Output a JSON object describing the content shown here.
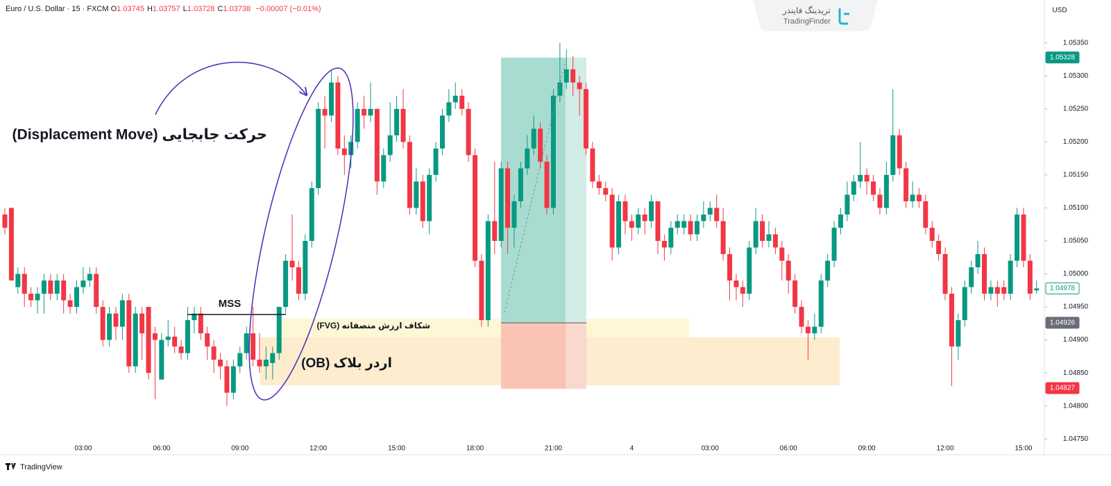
{
  "header": {
    "symbol": "Euro / U.S. Dollar · 15 · FXCM",
    "ohlc": [
      {
        "letter": "O",
        "value": "1.03745"
      },
      {
        "letter": "H",
        "value": "1.03757"
      },
      {
        "letter": "L",
        "value": "1.03728"
      },
      {
        "letter": "C",
        "value": "1.03738"
      }
    ],
    "change": "−0.00007 (−0.01%)"
  },
  "watermark": {
    "brand_fa": "تریدینگ فایندر",
    "brand_en": "TradingFinder"
  },
  "footer": "TradingView",
  "annotations": {
    "displacement": "حرکت جابجایی (Displacement Move)",
    "mss": "MSS",
    "fvg": "شکاف ارزش منصفانه (FVG)",
    "ob": "اردر بلاک (OB)"
  },
  "chart_data": {
    "type": "candlestick",
    "currency": "USD",
    "up_color": "#089981",
    "down_color": "#f23645",
    "categories": [
      null,
      null,
      null,
      null,
      null,
      null,
      null,
      null,
      null,
      null,
      null,
      null,
      "03:00",
      null,
      null,
      null,
      null,
      null,
      null,
      null,
      null,
      null,
      null,
      null,
      "06:00",
      null,
      null,
      null,
      null,
      null,
      null,
      null,
      null,
      null,
      null,
      null,
      "09:00",
      null,
      null,
      null,
      null,
      null,
      null,
      null,
      null,
      null,
      null,
      null,
      "12:00",
      null,
      null,
      null,
      null,
      null,
      null,
      null,
      null,
      null,
      null,
      null,
      "15:00",
      null,
      null,
      null,
      null,
      null,
      null,
      null,
      null,
      null,
      null,
      null,
      "18:00",
      null,
      null,
      null,
      null,
      null,
      null,
      null,
      null,
      null,
      null,
      null,
      "21:00",
      null,
      null,
      null,
      null,
      null,
      null,
      null,
      null,
      null,
      null,
      null,
      "4",
      null,
      null,
      null,
      null,
      null,
      null,
      null,
      null,
      null,
      null,
      null,
      "03:00",
      null,
      null,
      null,
      null,
      null,
      null,
      null,
      null,
      null,
      null,
      null,
      "06:00",
      null,
      null,
      null,
      null,
      null,
      null,
      null,
      null,
      null,
      null,
      null,
      "09:00",
      null,
      null,
      null,
      null,
      null,
      null,
      null,
      null,
      null,
      null,
      null,
      "12:00",
      null,
      null,
      null,
      null,
      null,
      null,
      null,
      null,
      null,
      null,
      null,
      "15:00",
      null,
      null
    ],
    "open": [
      1.0509,
      1.051,
      1.0498,
      1.05,
      1.0497,
      1.0496,
      1.0497,
      1.0499,
      1.0497,
      1.0499,
      1.0496,
      1.0495,
      1.0498,
      1.0499,
      1.05,
      1.0495,
      1.049,
      1.0494,
      1.0492,
      1.0496,
      1.0486,
      1.0494,
      1.0495,
      1.0491,
      1.0484,
      1.049,
      1.04905,
      1.0489,
      1.0488,
      1.0493,
      1.0494,
      1.0491,
      1.0489,
      1.0487,
      1.0486,
      1.0482,
      1.0486,
      1.0488,
      1.0491,
      1.0487,
      1.0486,
      1.04865,
      1.0488,
      1.0495,
      1.0502,
      1.0501,
      1.0497,
      1.0505,
      1.0513,
      1.0525,
      1.0524,
      1.0529,
      1.0519,
      1.0518,
      1.052,
      1.0525,
      1.0524,
      1.0525,
      1.0514,
      1.0518,
      1.0521,
      1.0525,
      1.052,
      1.051,
      1.0514,
      1.0508,
      1.0515,
      1.0519,
      1.0524,
      1.0526,
      1.0527,
      1.0525,
      1.0518,
      1.0502,
      1.0493,
      1.0508,
      1.0505,
      1.0516,
      1.0507,
      1.0511,
      1.0516,
      1.0519,
      1.0522,
      1.0517,
      1.051,
      1.0527,
      1.0529,
      1.0531,
      1.0529,
      1.0528,
      1.0519,
      1.0514,
      1.0513,
      1.0512,
      1.0504,
      1.0511,
      1.0508,
      1.0507,
      1.0509,
      1.0508,
      1.0511,
      1.0505,
      1.0504,
      1.0507,
      1.0507,
      1.0508,
      1.0506,
      1.0508,
      1.0509,
      1.051,
      1.0508,
      1.0503,
      1.0499,
      1.0498,
      1.0497,
      1.0504,
      1.0508,
      1.0505,
      1.0506,
      1.0504,
      1.0502,
      1.0499,
      1.0495,
      1.0492,
      1.0491,
      1.0492,
      1.0499,
      1.0502,
      1.0507,
      1.0509,
      1.0512,
      1.0514,
      1.0515,
      1.0514,
      1.0512,
      1.051,
      1.0515,
      1.0521,
      1.0516,
      1.0511,
      1.0512,
      1.0511,
      1.0507,
      1.0505,
      1.0503,
      1.0497,
      1.0489,
      1.0493,
      1.0498,
      1.0501,
      1.0503,
      1.0497,
      1.0498,
      1.0498,
      1.0497,
      1.0502,
      1.0509,
      1.0502,
      1.04975
    ],
    "high": [
      1.051,
      1.051,
      1.0501,
      1.0501,
      1.0498,
      1.0498,
      1.05,
      1.05,
      1.05,
      1.05,
      1.0497,
      1.0499,
      1.0501,
      1.0501,
      1.0501,
      1.0496,
      1.0495,
      1.0495,
      1.0497,
      1.0497,
      1.0495,
      1.0495,
      1.0495,
      1.0492,
      1.0491,
      1.0493,
      1.0492,
      1.049,
      1.0495,
      1.0495,
      1.0495,
      1.0492,
      1.049,
      1.0488,
      1.0487,
      1.0487,
      1.0489,
      1.0492,
      1.0495,
      1.0491,
      1.0489,
      1.0489,
      1.0495,
      1.0503,
      1.0509,
      1.0502,
      1.0506,
      1.0514,
      1.0526,
      1.0527,
      1.0531,
      1.053,
      1.0521,
      1.0521,
      1.0526,
      1.0527,
      1.0529,
      1.0525,
      1.0519,
      1.0526,
      1.0527,
      1.0528,
      1.0521,
      1.0516,
      1.0515,
      1.0516,
      1.052,
      1.0525,
      1.0528,
      1.0529,
      1.0528,
      1.0526,
      1.0519,
      1.0503,
      1.0509,
      1.0517,
      1.0517,
      1.0517,
      1.0512,
      1.0517,
      1.0521,
      1.0524,
      1.0523,
      1.0518,
      1.0528,
      1.0535,
      1.0534,
      1.0533,
      1.053,
      1.0529,
      1.052,
      1.0515,
      1.0514,
      1.0513,
      1.0512,
      1.0512,
      1.0509,
      1.051,
      1.051,
      1.0512,
      1.0511,
      1.0506,
      1.0508,
      1.0509,
      1.0509,
      1.0509,
      1.0509,
      1.0511,
      1.0511,
      1.0512,
      1.051,
      1.0504,
      1.05,
      1.0499,
      1.0505,
      1.051,
      1.0509,
      1.0508,
      1.0507,
      1.0505,
      1.0503,
      1.05,
      1.0496,
      1.0493,
      1.0494,
      1.05,
      1.0503,
      1.0508,
      1.051,
      1.0514,
      1.0515,
      1.052,
      1.0516,
      1.0515,
      1.0513,
      1.0517,
      1.0528,
      1.0522,
      1.0517,
      1.0514,
      1.0513,
      1.0512,
      1.0508,
      1.0506,
      1.0504,
      1.0498,
      1.0494,
      1.0499,
      1.0502,
      1.0505,
      1.0504,
      1.0499,
      1.0499,
      1.0499,
      1.0503,
      1.051,
      1.051,
      1.0503,
      1.0499
    ],
    "low": [
      1.0506,
      1.0499,
      1.0497,
      1.0495,
      1.0495,
      1.0494,
      1.0494,
      1.0496,
      1.0496,
      1.0494,
      1.0494,
      1.0494,
      1.0497,
      1.0498,
      1.0494,
      1.0489,
      1.0489,
      1.049,
      1.049,
      1.0485,
      1.0485,
      1.0487,
      1.0484,
      1.0481,
      1.0484,
      1.0489,
      1.0488,
      1.0487,
      1.0487,
      1.0491,
      1.049,
      1.0487,
      1.0485,
      1.0484,
      1.048,
      1.0481,
      1.0485,
      1.0487,
      1.0486,
      1.0485,
      1.0484,
      1.0484,
      1.0487,
      1.0494,
      1.0499,
      1.0496,
      1.0496,
      1.0504,
      1.0512,
      1.0519,
      1.0523,
      1.0518,
      1.0515,
      1.0516,
      1.0519,
      1.0522,
      1.0523,
      1.0512,
      1.0513,
      1.0517,
      1.052,
      1.0519,
      1.0509,
      1.0509,
      1.0507,
      1.0506,
      1.0514,
      1.0518,
      1.0523,
      1.0525,
      1.0524,
      1.0517,
      1.0501,
      1.0492,
      1.0492,
      1.0503,
      1.0504,
      1.0503,
      1.0504,
      1.051,
      1.0515,
      1.0518,
      1.0516,
      1.0509,
      1.0509,
      1.0526,
      1.0528,
      1.0527,
      1.0524,
      1.0518,
      1.0513,
      1.0512,
      1.0511,
      1.0502,
      1.0503,
      1.0506,
      1.0505,
      1.0506,
      1.0506,
      1.0507,
      1.0503,
      1.0502,
      1.0503,
      1.0506,
      1.0506,
      1.0505,
      1.0505,
      1.0507,
      1.0508,
      1.0507,
      1.0502,
      1.0496,
      1.0496,
      1.0495,
      1.0496,
      1.0503,
      1.0504,
      1.0504,
      1.0503,
      1.0499,
      1.0497,
      1.0494,
      1.0491,
      1.0487,
      1.049,
      1.0491,
      1.0498,
      1.0501,
      1.0506,
      1.0508,
      1.0511,
      1.0513,
      1.0512,
      1.0511,
      1.0509,
      1.0509,
      1.0514,
      1.0515,
      1.051,
      1.051,
      1.051,
      1.0506,
      1.0504,
      1.0502,
      1.0496,
      1.0483,
      1.0487,
      1.0492,
      1.0497,
      1.05,
      1.0496,
      1.0496,
      1.0495,
      1.0496,
      1.0496,
      1.0501,
      1.0501,
      1.0496,
      1.0497
    ],
    "close": [
      1.0507,
      1.0499,
      1.05,
      1.0497,
      1.0496,
      1.0497,
      1.0499,
      1.0497,
      1.0499,
      1.0496,
      1.0495,
      1.0498,
      1.0499,
      1.05,
      1.0495,
      1.049,
      1.0494,
      1.0492,
      1.0496,
      1.0486,
      1.0494,
      1.0491,
      1.0485,
      1.049,
      1.049,
      1.04905,
      1.0489,
      1.0488,
      1.0493,
      1.0494,
      1.0491,
      1.0489,
      1.0487,
      1.0486,
      1.0482,
      1.0486,
      1.0488,
      1.0491,
      1.0487,
      1.0486,
      1.0487,
      1.0488,
      1.0495,
      1.0502,
      1.0501,
      1.0497,
      1.0505,
      1.0513,
      1.0525,
      1.0524,
      1.0529,
      1.0519,
      1.0518,
      1.052,
      1.0525,
      1.0524,
      1.0525,
      1.0514,
      1.0518,
      1.0521,
      1.0525,
      1.052,
      1.051,
      1.0514,
      1.0508,
      1.0515,
      1.0519,
      1.0524,
      1.0526,
      1.0527,
      1.0525,
      1.0518,
      1.0502,
      1.0493,
      1.0508,
      1.0505,
      1.0516,
      1.0507,
      1.0511,
      1.0516,
      1.0519,
      1.0522,
      1.0517,
      1.051,
      1.0527,
      1.0529,
      1.0531,
      1.0529,
      1.0528,
      1.0519,
      1.0514,
      1.0513,
      1.0512,
      1.0504,
      1.0511,
      1.0508,
      1.0507,
      1.0509,
      1.0508,
      1.0511,
      1.0505,
      1.0504,
      1.0507,
      1.0508,
      1.0508,
      1.0506,
      1.0508,
      1.0509,
      1.051,
      1.0508,
      1.0503,
      1.0499,
      1.0498,
      1.0497,
      1.0504,
      1.0508,
      1.0505,
      1.0506,
      1.0504,
      1.0502,
      1.0499,
      1.0495,
      1.0492,
      1.0491,
      1.0492,
      1.0499,
      1.0502,
      1.0507,
      1.0509,
      1.0512,
      1.0514,
      1.0515,
      1.0514,
      1.0512,
      1.051,
      1.0515,
      1.0521,
      1.0516,
      1.0511,
      1.0512,
      1.0511,
      1.0507,
      1.0505,
      1.0503,
      1.0497,
      1.0489,
      1.0493,
      1.0498,
      1.0501,
      1.0503,
      1.0497,
      1.0498,
      1.0497,
      1.0497,
      1.0502,
      1.0509,
      1.0502,
      1.0497,
      1.04978
    ],
    "ylim": [
      1.04726,
      1.05415
    ],
    "yticks": [
      {
        "value": 1.0535,
        "label": "1.05350"
      },
      {
        "value": 1.053,
        "label": "1.05300"
      },
      {
        "value": 1.0525,
        "label": "1.05250"
      },
      {
        "value": 1.052,
        "label": "1.05200"
      },
      {
        "value": 1.0515,
        "label": "1.05150"
      },
      {
        "value": 1.051,
        "label": "1.05100"
      },
      {
        "value": 1.0505,
        "label": "1.05050"
      },
      {
        "value": 1.05,
        "label": "1.05000"
      },
      {
        "value": 1.0495,
        "label": "1.04950"
      },
      {
        "value": 1.049,
        "label": "1.04900"
      },
      {
        "value": 1.0485,
        "label": "1.04850"
      },
      {
        "value": 1.048,
        "label": "1.04800"
      },
      {
        "value": 1.0475,
        "label": "1.04750"
      }
    ],
    "price_markers": [
      {
        "value": 1.05328,
        "color": "#089981",
        "style": "filled"
      },
      {
        "value": 1.04978,
        "color": "#089981",
        "style": "outline"
      },
      {
        "value": 1.04926,
        "color": "#6a6d78",
        "style": "filled"
      },
      {
        "value": 1.04827,
        "color": "#f23645",
        "style": "filled"
      }
    ]
  }
}
